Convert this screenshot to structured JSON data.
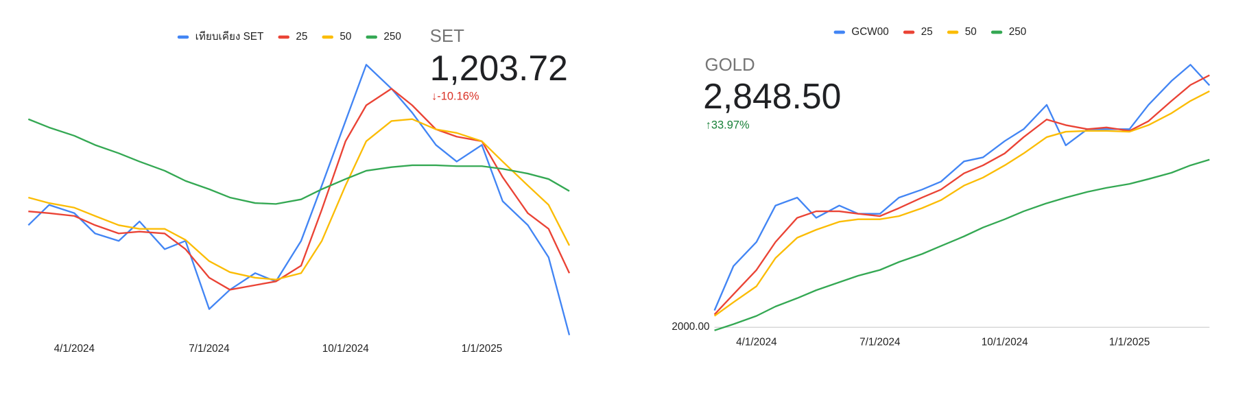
{
  "chart_data": [
    {
      "type": "line",
      "title": "SET",
      "headline": "1,203.72",
      "change": "↓-10.16%",
      "change_color": "#d93025",
      "legend": "top",
      "x": [
        "3/1/2024",
        "3/15/2024",
        "4/1/2024",
        "4/15/2024",
        "5/1/2024",
        "5/15/2024",
        "6/1/2024",
        "6/15/2024",
        "7/1/2024",
        "7/15/2024",
        "8/1/2024",
        "8/15/2024",
        "9/1/2024",
        "9/15/2024",
        "10/1/2024",
        "10/15/2024",
        "11/1/2024",
        "11/15/2024",
        "12/1/2024",
        "12/15/2024",
        "1/1/2025",
        "1/15/2025",
        "2/1/2025",
        "2/15/2025",
        "3/1/2025"
      ],
      "xlim": [
        "3/1/2024",
        "3/1/2025"
      ],
      "xticks": [
        "4/1/2024",
        "7/1/2024",
        "10/1/2024",
        "1/1/2025"
      ],
      "ylim": [
        1200,
        1506
      ],
      "series": [
        {
          "name": "เทียบเคียง SET",
          "color": "#4285f4",
          "values": [
            1323,
            1345,
            1336,
            1314,
            1306,
            1327,
            1297,
            1306,
            1232,
            1253,
            1271,
            1262,
            1306,
            1366,
            1436,
            1497,
            1471,
            1445,
            1410,
            1392,
            1410,
            1349,
            1323,
            1288,
            1203.72
          ]
        },
        {
          "name": "25",
          "color": "#ea4335",
          "values": [
            1338,
            1336,
            1333,
            1323,
            1314,
            1316,
            1314,
            1297,
            1266,
            1253,
            1258,
            1262,
            1279,
            1340,
            1414,
            1453,
            1471,
            1453,
            1427,
            1419,
            1414,
            1375,
            1336,
            1319,
            1271
          ]
        },
        {
          "name": "50",
          "color": "#fbbc04",
          "values": [
            1353,
            1347,
            1342,
            1333,
            1323,
            1319,
            1319,
            1307,
            1284,
            1272,
            1266,
            1264,
            1271,
            1306,
            1366,
            1414,
            1436,
            1438,
            1427,
            1423,
            1414,
            1392,
            1366,
            1345,
            1301
          ]
        },
        {
          "name": "250",
          "color": "#34a853",
          "values": [
            1438,
            1429,
            1420,
            1410,
            1401,
            1392,
            1382,
            1371,
            1362,
            1353,
            1347,
            1346,
            1351,
            1362,
            1373,
            1382,
            1386,
            1388,
            1388,
            1387,
            1387,
            1384,
            1379,
            1373,
            1360
          ]
        }
      ]
    },
    {
      "type": "line",
      "title": "GOLD",
      "headline": "2,848.50",
      "change": "↑33.97%",
      "change_color": "#188038",
      "legend": "top",
      "x": [
        "3/1/2024",
        "3/15/2024",
        "4/1/2024",
        "4/15/2024",
        "5/1/2024",
        "5/15/2024",
        "6/1/2024",
        "6/15/2024",
        "7/1/2024",
        "7/15/2024",
        "8/1/2024",
        "8/15/2024",
        "9/1/2024",
        "9/15/2024",
        "10/1/2024",
        "10/15/2024",
        "11/1/2024",
        "11/15/2024",
        "12/1/2024",
        "12/15/2024",
        "1/1/2025",
        "1/15/2025",
        "2/1/2025",
        "2/15/2025",
        "3/1/2025"
      ],
      "xlim": [
        "3/1/2024",
        "3/1/2025"
      ],
      "xticks": [
        "4/1/2024",
        "7/1/2024",
        "10/1/2024",
        "1/1/2025"
      ],
      "ylim": [
        2000,
        2950
      ],
      "yticks": [
        {
          "value": 2000,
          "label": "2000.00"
        }
      ],
      "series": [
        {
          "name": "GCW00",
          "color": "#4285f4",
          "values": [
            2059,
            2215,
            2299,
            2427,
            2455,
            2384,
            2427,
            2398,
            2398,
            2455,
            2483,
            2511,
            2582,
            2596,
            2653,
            2695,
            2780,
            2638,
            2695,
            2695,
            2695,
            2780,
            2864,
            2921,
            2848.5
          ]
        },
        {
          "name": "25",
          "color": "#ea4335",
          "values": [
            2045,
            2116,
            2201,
            2299,
            2384,
            2407,
            2407,
            2398,
            2390,
            2418,
            2455,
            2483,
            2540,
            2568,
            2610,
            2667,
            2729,
            2709,
            2695,
            2701,
            2689,
            2723,
            2794,
            2850,
            2884
          ]
        },
        {
          "name": "50",
          "color": "#fbbc04",
          "values": [
            2040,
            2088,
            2144,
            2243,
            2314,
            2342,
            2370,
            2379,
            2379,
            2390,
            2418,
            2446,
            2497,
            2525,
            2568,
            2610,
            2667,
            2686,
            2689,
            2689,
            2686,
            2709,
            2751,
            2794,
            2828
          ]
        },
        {
          "name": "250",
          "color": "#34a853",
          "values": [
            1989,
            2011,
            2040,
            2073,
            2102,
            2130,
            2158,
            2181,
            2201,
            2229,
            2257,
            2285,
            2319,
            2350,
            2379,
            2407,
            2435,
            2455,
            2475,
            2489,
            2503,
            2520,
            2542,
            2568,
            2588
          ]
        }
      ]
    }
  ]
}
